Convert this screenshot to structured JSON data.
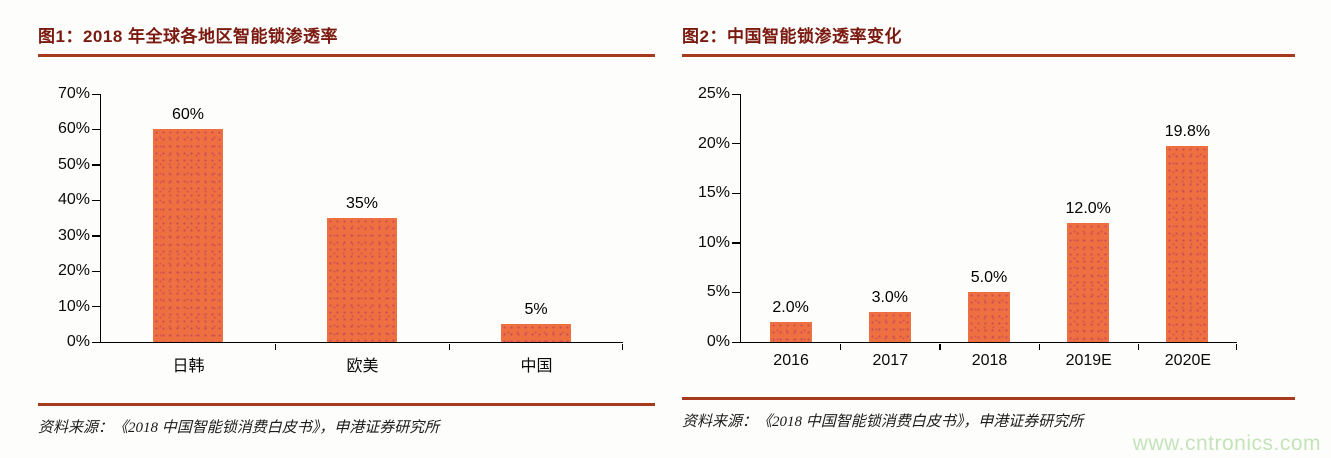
{
  "figures": [
    {
      "title": "图1：2018 年全球各地区智能锁渗透率",
      "source": "资料来源：《2018 中国智能锁消费白皮书》，申港证券研究所"
    },
    {
      "title": "图2：中国智能锁渗透率变化",
      "source": "资料来源：《2018 中国智能锁消费白皮书》，申港证券研究所"
    }
  ],
  "chart_data": [
    {
      "type": "bar",
      "title": "图1：2018 年全球各地区智能锁渗透率",
      "categories": [
        "日韩",
        "欧美",
        "中国"
      ],
      "values": [
        60,
        35,
        5
      ],
      "value_labels": [
        "60%",
        "35%",
        "5%"
      ],
      "xlabel": "",
      "ylabel": "",
      "ylim": [
        0,
        70
      ],
      "ytick_step": 10,
      "ytick_suffix": "%",
      "grid": false,
      "legend": "none",
      "bar_color": "#ee7040"
    },
    {
      "type": "bar",
      "title": "图2：中国智能锁渗透率变化",
      "categories": [
        "2016",
        "2017",
        "2018",
        "2019E",
        "2020E"
      ],
      "values": [
        2.0,
        3.0,
        5.0,
        12.0,
        19.8
      ],
      "value_labels": [
        "2.0%",
        "3.0%",
        "5.0%",
        "12.0%",
        "19.8%"
      ],
      "xlabel": "",
      "ylabel": "",
      "ylim": [
        0,
        25
      ],
      "ytick_step": 5,
      "ytick_suffix": "%",
      "grid": false,
      "legend": "none",
      "bar_color": "#ee7040"
    }
  ],
  "watermark": {
    "text": "www.cntronics.com",
    "color": "#c4e3ba"
  },
  "colors": {
    "title_text": "#7a1a10",
    "rule": "#a53a1c",
    "bar_fill": "#ee7040",
    "bar_dots": "#c84b5a",
    "axis": "#000000",
    "watermark": "#c4e3ba",
    "background": "#fdfefb"
  }
}
